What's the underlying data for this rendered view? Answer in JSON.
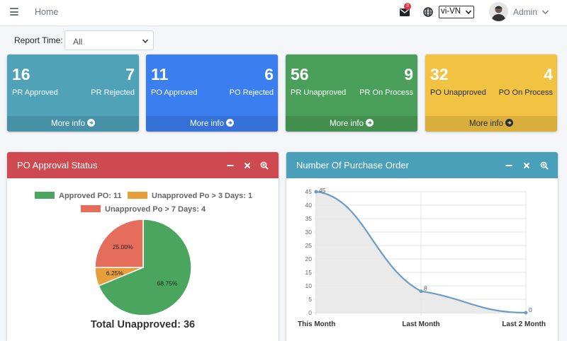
{
  "nav": {
    "home_label": "Home",
    "mail_badge": "3",
    "language": "vi-VN",
    "user_name": "Admin"
  },
  "filter": {
    "label": "Report Time:",
    "value": "All"
  },
  "cards": [
    {
      "n1": "16",
      "l1": "PR Approved",
      "n2": "7",
      "l2": "PR Rejected",
      "more": "More info",
      "color": "#4fa2b8"
    },
    {
      "n1": "11",
      "l1": "PO Approved",
      "n2": "6",
      "l2": "PO Rejected",
      "more": "More info",
      "color": "#3b7ef0"
    },
    {
      "n1": "56",
      "l1": "PR Unapproved",
      "n2": "9",
      "l2": "PR On Process",
      "more": "More info",
      "color": "#4aa05a"
    },
    {
      "n1": "32",
      "l1": "PO Unapproved",
      "n2": "4",
      "l2": "PO On Process",
      "more": "More info",
      "color": "#f2c242"
    }
  ],
  "approval_panel": {
    "title": "PO Approval Status",
    "header_color": "#cf4a50",
    "legend": [
      "Approved PO: 11",
      "Unapproved Po > 3 Days: 1",
      "Unapproved Po > 7 Days: 4"
    ],
    "total_label": "Total Unapproved: 36"
  },
  "order_panel": {
    "title": "Number Of Purchase Order",
    "header_color": "#4aa0b8"
  },
  "chart_data": [
    {
      "type": "pie",
      "title": "",
      "categories": [
        "Approved PO: 11",
        "Unapproved Po > 3 Days: 1",
        "Unapproved Po > 7 Days: 4"
      ],
      "values": [
        11,
        1,
        4
      ],
      "slice_labels": [
        "68.75%",
        "6.25%",
        "25.00%"
      ],
      "colors": [
        "#4aa55e",
        "#e89e3b",
        "#e56d5b"
      ],
      "legend_position": "top"
    },
    {
      "type": "area",
      "title": "",
      "categories": [
        "This Month",
        "Last Month",
        "Last 2 Month"
      ],
      "values": [
        45,
        8,
        0
      ],
      "ylim": [
        0,
        45
      ],
      "yticks": [
        0,
        5,
        10,
        15,
        20,
        25,
        30,
        35,
        40,
        45
      ],
      "grid": true,
      "line_color": "#6d9dc5",
      "fill_color": "#e6e6e6"
    }
  ]
}
